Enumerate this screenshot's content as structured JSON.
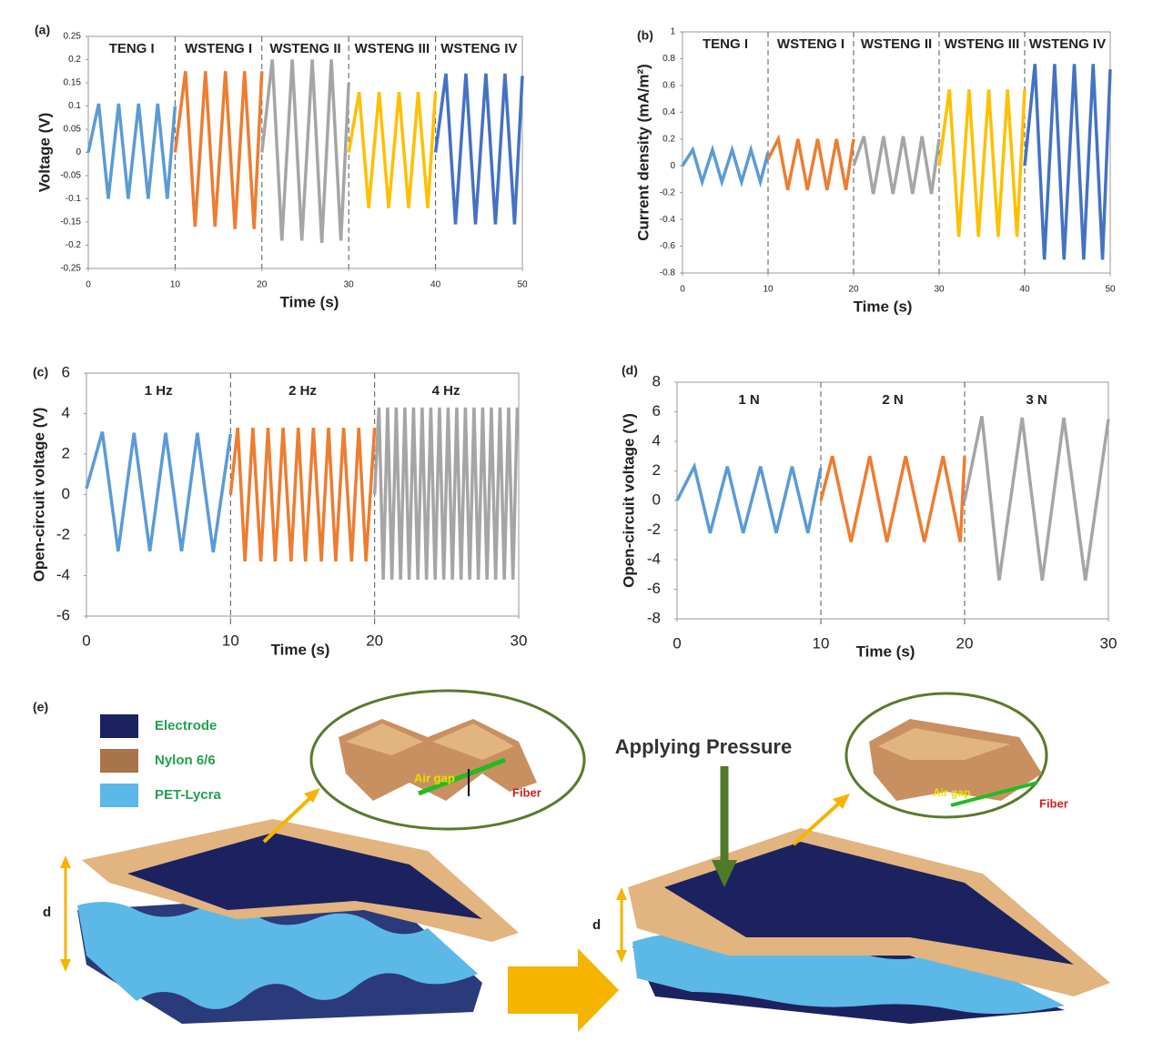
{
  "chart_data": [
    {
      "type": "line",
      "panel": "(a)",
      "xlabel": "Time (s)",
      "ylabel": "Voltage (V)",
      "xlim": [
        0,
        50
      ],
      "xticks": [
        0,
        10,
        20,
        30,
        40,
        50
      ],
      "ylim": [
        -0.25,
        0.25
      ],
      "yticks": [
        -0.25,
        -0.2,
        -0.15,
        -0.1,
        -0.05,
        0,
        0.05,
        0.1,
        0.15,
        0.2,
        0.25
      ],
      "series": [
        {
          "name": "TENG I",
          "color": "#5b9bd5",
          "x": [
            0,
            1.2,
            2.3,
            3.5,
            4.6,
            5.8,
            6.9,
            8,
            9.1,
            10
          ],
          "values": [
            0,
            0.105,
            -0.1,
            0.105,
            -0.1,
            0.105,
            -0.1,
            0.105,
            -0.1,
            0.1
          ]
        },
        {
          "name": "WSTENG I",
          "color": "#ed7d31",
          "x": [
            10,
            11.2,
            12.3,
            13.5,
            14.6,
            15.8,
            16.9,
            18,
            19.1,
            20
          ],
          "values": [
            0,
            0.175,
            -0.16,
            0.175,
            -0.16,
            0.175,
            -0.165,
            0.175,
            -0.165,
            0.175
          ]
        },
        {
          "name": "WSTENG II",
          "color": "#a5a5a5",
          "x": [
            20,
            21.2,
            22.3,
            23.5,
            24.6,
            25.8,
            26.9,
            28,
            29.1,
            30
          ],
          "values": [
            0,
            0.2,
            -0.19,
            0.2,
            -0.19,
            0.2,
            -0.195,
            0.2,
            -0.19,
            0.15
          ]
        },
        {
          "name": "WSTENG III",
          "color": "#ffc000",
          "x": [
            30,
            31.2,
            32.3,
            33.5,
            34.6,
            35.8,
            36.9,
            38,
            39.1,
            40
          ],
          "values": [
            0,
            0.13,
            -0.12,
            0.13,
            -0.12,
            0.13,
            -0.12,
            0.13,
            -0.12,
            0.13
          ]
        },
        {
          "name": "WSTENG IV",
          "color": "#4472c4",
          "x": [
            40,
            41.2,
            42.3,
            43.5,
            44.6,
            45.8,
            46.9,
            48,
            49.1,
            50
          ],
          "values": [
            0,
            0.17,
            -0.155,
            0.17,
            -0.155,
            0.17,
            -0.155,
            0.17,
            -0.155,
            0.165
          ]
        }
      ]
    },
    {
      "type": "line",
      "panel": "(b)",
      "xlabel": "Time (s)",
      "ylabel": "Current density (mA/m²)",
      "xlim": [
        0,
        50
      ],
      "xticks": [
        0,
        10,
        20,
        30,
        40,
        50
      ],
      "ylim": [
        -0.8,
        1
      ],
      "yticks": [
        -0.8,
        -0.6,
        -0.4,
        -0.2,
        0,
        0.2,
        0.4,
        0.6,
        0.8,
        1
      ],
      "series": [
        {
          "name": "TENG I",
          "color": "#5b9bd5",
          "x": [
            0,
            1.2,
            2.3,
            3.5,
            4.6,
            5.8,
            6.9,
            8,
            9.1,
            10
          ],
          "values": [
            0,
            0.12,
            -0.12,
            0.12,
            -0.12,
            0.12,
            -0.12,
            0.12,
            -0.12,
            0.1
          ]
        },
        {
          "name": "WSTENG I",
          "color": "#ed7d31",
          "x": [
            10,
            11.2,
            12.3,
            13.5,
            14.6,
            15.8,
            16.9,
            18,
            19.1,
            20
          ],
          "values": [
            0.05,
            0.2,
            -0.18,
            0.2,
            -0.18,
            0.2,
            -0.18,
            0.2,
            -0.18,
            0.2
          ]
        },
        {
          "name": "WSTENG II",
          "color": "#a5a5a5",
          "x": [
            20,
            21.2,
            22.3,
            23.5,
            24.6,
            25.8,
            26.9,
            28,
            29.1,
            30
          ],
          "values": [
            0,
            0.22,
            -0.21,
            0.22,
            -0.21,
            0.22,
            -0.21,
            0.22,
            -0.21,
            0.2
          ]
        },
        {
          "name": "WSTENG III",
          "color": "#ffc000",
          "x": [
            30,
            31.2,
            32.3,
            33.5,
            34.6,
            35.8,
            36.9,
            38,
            39.1,
            40
          ],
          "values": [
            0,
            0.57,
            -0.53,
            0.57,
            -0.53,
            0.57,
            -0.53,
            0.57,
            -0.53,
            0.57
          ]
        },
        {
          "name": "WSTENG IV",
          "color": "#4472c4",
          "x": [
            40,
            41.2,
            42.3,
            43.5,
            44.6,
            45.8,
            46.9,
            48,
            49.1,
            50
          ],
          "values": [
            0,
            0.76,
            -0.7,
            0.76,
            -0.7,
            0.76,
            -0.7,
            0.76,
            -0.7,
            0.72
          ]
        }
      ]
    },
    {
      "type": "line",
      "panel": "(c)",
      "xlabel": "Time (s)",
      "ylabel": "Open-circuit voltage (V)",
      "xlim": [
        0,
        30
      ],
      "xticks": [
        0,
        10,
        20,
        30
      ],
      "ylim": [
        -6,
        6
      ],
      "yticks": [
        -6,
        -4,
        -2,
        0,
        2,
        4,
        6
      ],
      "series": [
        {
          "name": "1 Hz",
          "color": "#5b9bd5",
          "x": [
            0,
            1.1,
            2.2,
            3.3,
            4.4,
            5.5,
            6.6,
            7.7,
            8.8,
            10
          ],
          "values": [
            0.3,
            3.1,
            -2.8,
            3.05,
            -2.8,
            3.05,
            -2.8,
            3.05,
            -2.85,
            3
          ]
        },
        {
          "name": "2 Hz",
          "color": "#ed7d31",
          "x": [
            10,
            10.5,
            11,
            11.55,
            12.1,
            12.6,
            13.1,
            13.65,
            14.2,
            14.7,
            15.2,
            15.75,
            16.3,
            16.8,
            17.3,
            17.85,
            18.4,
            18.9,
            19.4,
            20
          ],
          "values": [
            0,
            3.3,
            -3.3,
            3.3,
            -3.3,
            3.3,
            -3.3,
            3.3,
            -3.3,
            3.3,
            -3.3,
            3.3,
            -3.3,
            3.3,
            -3.3,
            3.3,
            -3.3,
            3.3,
            -3.3,
            3.3
          ]
        },
        {
          "name": "4 Hz",
          "color": "#a5a5a5",
          "x": [
            20,
            20.3,
            20.6,
            20.9,
            21.2,
            21.5,
            21.8,
            22.1,
            22.4,
            22.7,
            23,
            23.3,
            23.6,
            23.9,
            24.2,
            24.5,
            24.8,
            25.1,
            25.4,
            25.7,
            26,
            26.3,
            26.6,
            26.9,
            27.2,
            27.5,
            27.8,
            28.1,
            28.4,
            28.7,
            29,
            29.3,
            29.6,
            29.9
          ],
          "values": [
            0,
            4.3,
            -4.2,
            4.3,
            -4.2,
            4.3,
            -4.2,
            4.3,
            -4.2,
            4.3,
            -4.2,
            4.3,
            -4.2,
            4.3,
            -4.2,
            4.3,
            -4.2,
            4.3,
            -4.2,
            4.3,
            -4.2,
            4.3,
            -4.2,
            4.3,
            -4.2,
            4.3,
            -4.2,
            4.3,
            -4.2,
            4.3,
            -4.2,
            4.3,
            -4.2,
            4.3
          ]
        }
      ]
    },
    {
      "type": "line",
      "panel": "(d)",
      "xlabel": "Time (s)",
      "ylabel": "Open-circuit voltage (V)",
      "xlim": [
        0,
        30
      ],
      "xticks": [
        0,
        10,
        20,
        30
      ],
      "ylim": [
        -8,
        8
      ],
      "yticks": [
        -8,
        -6,
        -4,
        -2,
        0,
        2,
        4,
        6,
        8
      ],
      "series": [
        {
          "name": "1 N",
          "color": "#5b9bd5",
          "x": [
            0,
            1.2,
            2.3,
            3.5,
            4.6,
            5.8,
            6.9,
            8,
            9.1,
            10
          ],
          "values": [
            0,
            2.3,
            -2.2,
            2.3,
            -2.2,
            2.3,
            -2.2,
            2.3,
            -2.2,
            2.2
          ]
        },
        {
          "name": "2 N",
          "color": "#ed7d31",
          "x": [
            10,
            10.8,
            12.1,
            13.4,
            14.6,
            15.9,
            17.2,
            18.5,
            19.7,
            20
          ],
          "values": [
            0,
            3,
            -2.8,
            3,
            -2.8,
            3,
            -2.8,
            3,
            -2.8,
            3
          ]
        },
        {
          "name": "3 N",
          "color": "#a5a5a5",
          "x": [
            20,
            21.2,
            22.4,
            24,
            25.4,
            26.9,
            28.4,
            30
          ],
          "values": [
            0,
            5.7,
            -5.4,
            5.6,
            -5.4,
            5.6,
            -5.4,
            5.5
          ]
        }
      ]
    }
  ],
  "diagram": {
    "panel": "(e)",
    "legend": [
      "Electrode",
      "Nylon 6/6",
      "PET-Lycra"
    ],
    "action": "Applying Pressure",
    "air_gap": "Air gap",
    "fiber": "Fiber",
    "distance": "d"
  }
}
